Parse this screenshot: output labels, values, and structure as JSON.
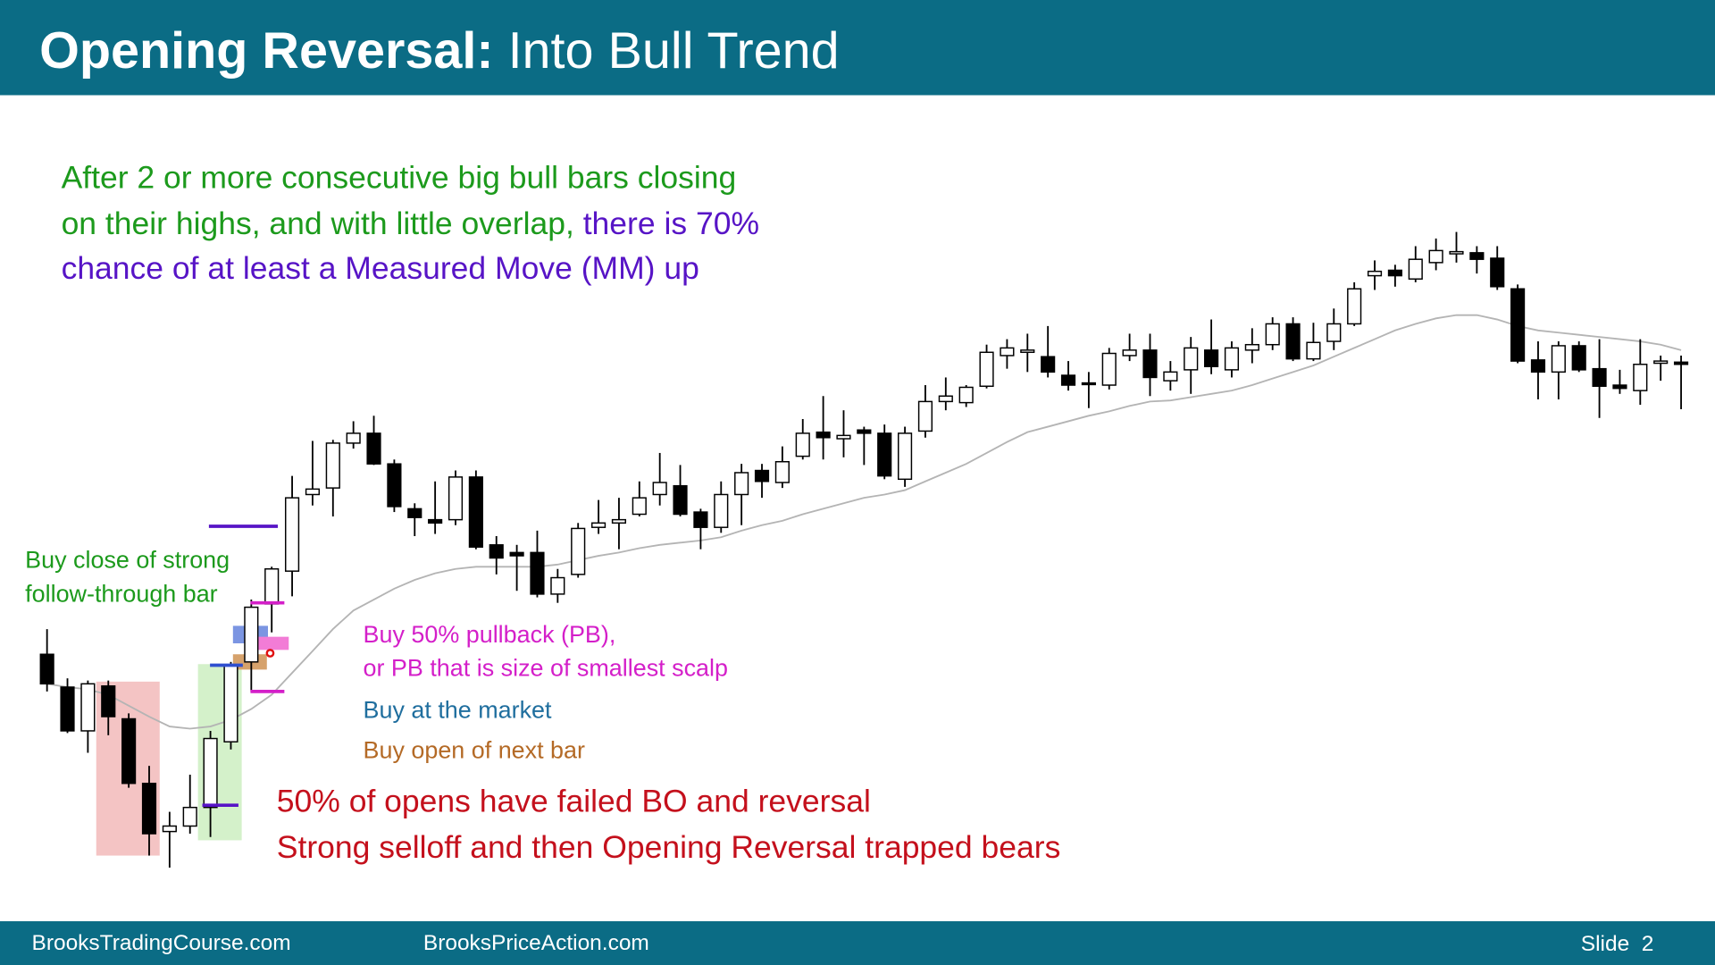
{
  "header": {
    "title_bold": "Opening Reversal:",
    "title_rest": "Into Bull Trend"
  },
  "note": {
    "line1": "After 2 or more consecutive big bull bars closing",
    "line2_green": "on their highs, and with little overlap,",
    "line2_purple": "there is 70%",
    "line3": "chance of at least a Measured Move (MM) up"
  },
  "annotations": {
    "buy_close": [
      "Buy close of strong",
      "follow-through bar"
    ],
    "buy_pullback": [
      "Buy 50% pullback (PB),",
      "or PB that is size of smallest scalp"
    ],
    "buy_market": "Buy at the market",
    "buy_open": "Buy open of next bar",
    "failed_bo": [
      "50% of opens have failed BO and reversal",
      "Strong selloff and then Opening Reversal trapped bears"
    ]
  },
  "footer": {
    "left": "BrooksTradingCourse.com",
    "middle": "BrooksPriceAction.com",
    "slide": "Slide  2"
  },
  "chart_data": {
    "type": "candlestick",
    "up_color": "#ffffff",
    "down_color": "#000000",
    "ma_color": "#b4b4b4",
    "open": [
      284,
      254,
      214,
      255,
      225,
      166,
      122,
      127,
      144,
      204,
      277,
      330,
      360,
      430,
      436,
      477,
      486,
      458,
      417,
      407,
      407,
      446,
      384,
      377,
      377,
      339,
      357,
      400,
      404,
      412,
      430,
      438,
      414,
      400,
      430,
      452,
      441,
      465,
      487,
      481,
      489,
      486,
      444,
      488,
      515,
      514,
      529,
      557,
      560,
      556,
      539,
      532,
      530,
      557,
      562,
      534,
      544,
      562,
      544,
      562,
      567,
      586,
      554,
      570,
      586,
      630,
      635,
      627,
      642,
      650,
      651,
      646,
      618,
      553,
      542,
      566,
      545,
      530,
      525,
      550,
      551
    ],
    "high": [
      307,
      262,
      260,
      260,
      230,
      182,
      140,
      174,
      214,
      277,
      334,
      364,
      447,
      479,
      480,
      497,
      502,
      462,
      422,
      442,
      452,
      452,
      392,
      384,
      397,
      362,
      404,
      425,
      427,
      442,
      468,
      457,
      417,
      442,
      458,
      458,
      474,
      499,
      520,
      507,
      492,
      494,
      492,
      530,
      537,
      530,
      567,
      572,
      577,
      584,
      552,
      542,
      564,
      577,
      577,
      552,
      574,
      590,
      570,
      582,
      592,
      592,
      587,
      600,
      624,
      644,
      640,
      657,
      664,
      670,
      657,
      657,
      622,
      570,
      570,
      570,
      572,
      544,
      572,
      557,
      557
    ],
    "low": [
      250,
      212,
      194,
      210,
      162,
      100,
      89,
      120,
      117,
      197,
      250,
      304,
      337,
      420,
      410,
      472,
      457,
      414,
      392,
      394,
      402,
      380,
      357,
      342,
      336,
      331,
      354,
      394,
      380,
      410,
      420,
      410,
      380,
      395,
      402,
      427,
      436,
      462,
      462,
      464,
      457,
      444,
      437,
      482,
      507,
      510,
      527,
      545,
      542,
      537,
      525,
      509,
      526,
      552,
      520,
      525,
      522,
      540,
      537,
      550,
      562,
      552,
      552,
      562,
      584,
      617,
      620,
      624,
      635,
      642,
      632,
      617,
      550,
      517,
      517,
      542,
      500,
      522,
      512,
      534,
      508
    ],
    "close": [
      257,
      214,
      257,
      227,
      166,
      120,
      127,
      144,
      207,
      274,
      327,
      362,
      427,
      435,
      477,
      486,
      458,
      419,
      409,
      404,
      446,
      382,
      372,
      374,
      339,
      354,
      399,
      404,
      407,
      427,
      441,
      412,
      400,
      430,
      450,
      442,
      460,
      486,
      482,
      484,
      486,
      447,
      486,
      515,
      520,
      528,
      560,
      564,
      562,
      542,
      530,
      531,
      559,
      562,
      537,
      542,
      564,
      547,
      564,
      567,
      586,
      554,
      569,
      586,
      618,
      634,
      630,
      645,
      653,
      652,
      645,
      620,
      552,
      542,
      566,
      544,
      529,
      527,
      549,
      552,
      549
    ],
    "moving_average": [
      257,
      254,
      252,
      247,
      237,
      227,
      218,
      216,
      218,
      224,
      234,
      247,
      267,
      287,
      307,
      324,
      334,
      344,
      352,
      358,
      362,
      364,
      364,
      364,
      364,
      366,
      370,
      374,
      377,
      381,
      384,
      386,
      388,
      391,
      397,
      402,
      406,
      412,
      417,
      422,
      427,
      430,
      434,
      442,
      450,
      458,
      468,
      478,
      487,
      492,
      497,
      502,
      506,
      511,
      515,
      516,
      519,
      522,
      525,
      530,
      536,
      542,
      548,
      556,
      564,
      572,
      580,
      586,
      591,
      594,
      594,
      590,
      584,
      580,
      578,
      576,
      574,
      572,
      570,
      567,
      562
    ]
  }
}
